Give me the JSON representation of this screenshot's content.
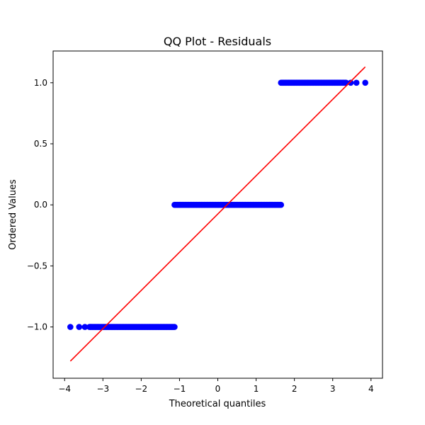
{
  "chart_data": {
    "type": "scatter",
    "title": "QQ Plot - Residuals",
    "xlabel": "Theoretical quantiles",
    "ylabel": "Ordered Values",
    "xlim": [
      -4.3,
      4.3
    ],
    "ylim": [
      -1.42,
      1.26
    ],
    "x_ticks": [
      -4,
      -3,
      -2,
      -1,
      0,
      1,
      2,
      3,
      4
    ],
    "x_tick_labels": [
      "−4",
      "−3",
      "−2",
      "−1",
      "0",
      "1",
      "2",
      "3",
      "4"
    ],
    "y_ticks": [
      -1.0,
      -0.5,
      0.0,
      0.5,
      1.0
    ],
    "y_tick_labels": [
      "−1.0",
      "−0.5",
      "0.0",
      "0.5",
      "1.0"
    ],
    "grid": false,
    "colors": {
      "points": "#0000ff",
      "fit_line": "#ff0000"
    },
    "series": [
      {
        "kind": "points",
        "segments": [
          {
            "y": -1.0,
            "x_dense_range": [
              -3.35,
              -1.13
            ],
            "x_outliers": [
              -3.85,
              -3.62,
              -3.47
            ]
          },
          {
            "y": 0.0,
            "x_dense_range": [
              -1.13,
              1.65
            ],
            "x_outliers": []
          },
          {
            "y": 1.0,
            "x_dense_range": [
              1.65,
              3.35
            ],
            "x_outliers": [
              3.47,
              3.62,
              3.85
            ]
          }
        ]
      },
      {
        "kind": "fit_line",
        "x": [
          -3.85,
          3.85
        ],
        "y": [
          -1.28,
          1.13
        ]
      }
    ]
  }
}
